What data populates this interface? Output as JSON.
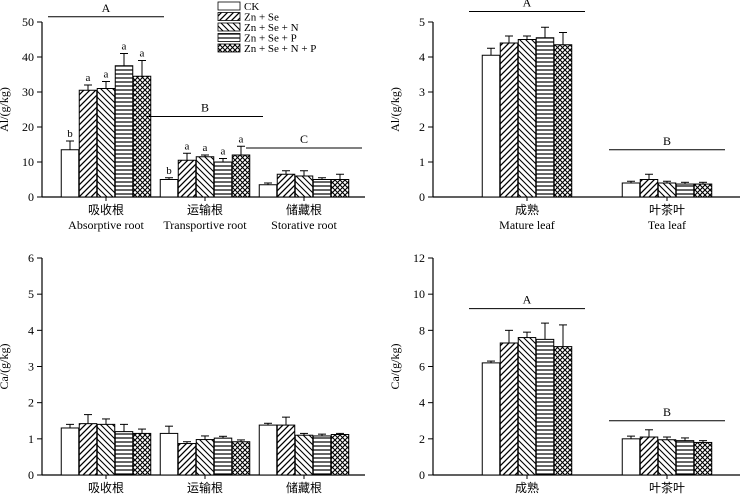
{
  "chart_data": [
    {
      "id": "al-root",
      "type": "bar",
      "ylabel": "Al/(g/kg)",
      "ylim": [
        0,
        50
      ],
      "ticks": [
        0,
        10,
        20,
        30,
        40,
        50
      ],
      "categories": [
        {
          "cn": "吸收根",
          "en": "Absorptive root"
        },
        {
          "cn": "运输根",
          "en": "Transportive root"
        },
        {
          "cn": "储藏根",
          "en": "Storative root"
        }
      ],
      "series": [
        {
          "name": "CK",
          "values": [
            13.5,
            5.0,
            3.5
          ],
          "errors": [
            2.5,
            0.5,
            0.5
          ],
          "letters": [
            "b",
            "b",
            ""
          ]
        },
        {
          "name": "Zn + Se",
          "values": [
            30.5,
            10.5,
            6.5
          ],
          "errors": [
            1.5,
            2.0,
            1.0
          ],
          "letters": [
            "a",
            "a",
            ""
          ]
        },
        {
          "name": "Zn + Se + N",
          "values": [
            31.0,
            11.5,
            6.0
          ],
          "errors": [
            2.0,
            0.5,
            1.5
          ],
          "letters": [
            "a",
            "a",
            ""
          ]
        },
        {
          "name": "Zn + Se + P",
          "values": [
            37.5,
            10.0,
            5.0
          ],
          "errors": [
            3.5,
            1.0,
            0.5
          ],
          "letters": [
            "a",
            "a",
            ""
          ]
        },
        {
          "name": "Zn + Se + N + P",
          "values": [
            34.5,
            12.0,
            5.0
          ],
          "errors": [
            4.5,
            2.5,
            1.5
          ],
          "letters": [
            "a",
            "a",
            ""
          ]
        }
      ],
      "group_lines": [
        {
          "group": 0,
          "letter": "A",
          "value": 51.5
        },
        {
          "group": 1,
          "letter": "B",
          "value": 23.0
        },
        {
          "group": 2,
          "letter": "C",
          "value": 14.0
        }
      ],
      "legend": true
    },
    {
      "id": "al-leaf",
      "type": "bar",
      "ylabel": "Al/(g/kg)",
      "ylim": [
        0,
        5
      ],
      "ticks": [
        0,
        1,
        2,
        3,
        4,
        5
      ],
      "categories": [
        {
          "cn": "成熟",
          "en": "Mature leaf"
        },
        {
          "cn": "叶茶叶",
          "en": "Tea leaf"
        }
      ],
      "series": [
        {
          "name": "CK",
          "values": [
            4.05,
            0.4
          ],
          "errors": [
            0.2,
            0.05
          ]
        },
        {
          "name": "Zn + Se",
          "values": [
            4.4,
            0.5
          ],
          "errors": [
            0.2,
            0.15
          ]
        },
        {
          "name": "Zn + Se + N",
          "values": [
            4.5,
            0.4
          ],
          "errors": [
            0.1,
            0.05
          ]
        },
        {
          "name": "Zn + Se + P",
          "values": [
            4.55,
            0.37
          ],
          "errors": [
            0.3,
            0.05
          ]
        },
        {
          "name": "Zn + Se + N + P",
          "values": [
            4.35,
            0.37
          ],
          "errors": [
            0.35,
            0.05
          ]
        }
      ],
      "group_lines": [
        {
          "group": 0,
          "letter": "A",
          "value": 5.3
        },
        {
          "group": 1,
          "letter": "B",
          "value": 1.35
        }
      ],
      "legend": false
    },
    {
      "id": "ca-root",
      "type": "bar",
      "ylabel": "Ca/(g/kg)",
      "ylim": [
        0,
        6
      ],
      "ticks": [
        0,
        1,
        2,
        3,
        4,
        5,
        6
      ],
      "categories": [
        {
          "cn": "吸收根",
          "en": ""
        },
        {
          "cn": "运输根",
          "en": ""
        },
        {
          "cn": "储藏根",
          "en": ""
        }
      ],
      "series": [
        {
          "name": "CK",
          "values": [
            1.3,
            1.15,
            1.38
          ],
          "errors": [
            0.1,
            0.2,
            0.05
          ]
        },
        {
          "name": "Zn + Se",
          "values": [
            1.42,
            0.87,
            1.38
          ],
          "errors": [
            0.25,
            0.05,
            0.22
          ]
        },
        {
          "name": "Zn + Se + N",
          "values": [
            1.4,
            0.98,
            1.1
          ],
          "errors": [
            0.15,
            0.1,
            0.05
          ]
        },
        {
          "name": "Zn + Se + P",
          "values": [
            1.2,
            1.02,
            1.08
          ],
          "errors": [
            0.2,
            0.05,
            0.05
          ]
        },
        {
          "name": "Zn + Se + N + P",
          "values": [
            1.15,
            0.92,
            1.12
          ],
          "errors": [
            0.12,
            0.05,
            0.03
          ]
        }
      ],
      "group_lines": [],
      "legend": false
    },
    {
      "id": "ca-leaf",
      "type": "bar",
      "ylabel": "Ca/(g/kg)",
      "ylim": [
        0,
        12
      ],
      "ticks": [
        0,
        2,
        4,
        6,
        8,
        10,
        12
      ],
      "categories": [
        {
          "cn": "成熟",
          "en": ""
        },
        {
          "cn": "叶茶叶",
          "en": ""
        }
      ],
      "series": [
        {
          "name": "CK",
          "values": [
            6.2,
            2.0
          ],
          "errors": [
            0.1,
            0.15
          ]
        },
        {
          "name": "Zn + Se",
          "values": [
            7.3,
            2.1
          ],
          "errors": [
            0.7,
            0.4
          ]
        },
        {
          "name": "Zn + Se + N",
          "values": [
            7.6,
            1.95
          ],
          "errors": [
            0.3,
            0.15
          ]
        },
        {
          "name": "Zn + Se + P",
          "values": [
            7.5,
            1.9
          ],
          "errors": [
            0.9,
            0.15
          ]
        },
        {
          "name": "Zn + Se + N + P",
          "values": [
            7.1,
            1.8
          ],
          "errors": [
            1.2,
            0.1
          ]
        }
      ],
      "group_lines": [
        {
          "group": 0,
          "letter": "A",
          "value": 9.2
        },
        {
          "group": 1,
          "letter": "B",
          "value": 3.0
        }
      ],
      "legend": false
    }
  ]
}
